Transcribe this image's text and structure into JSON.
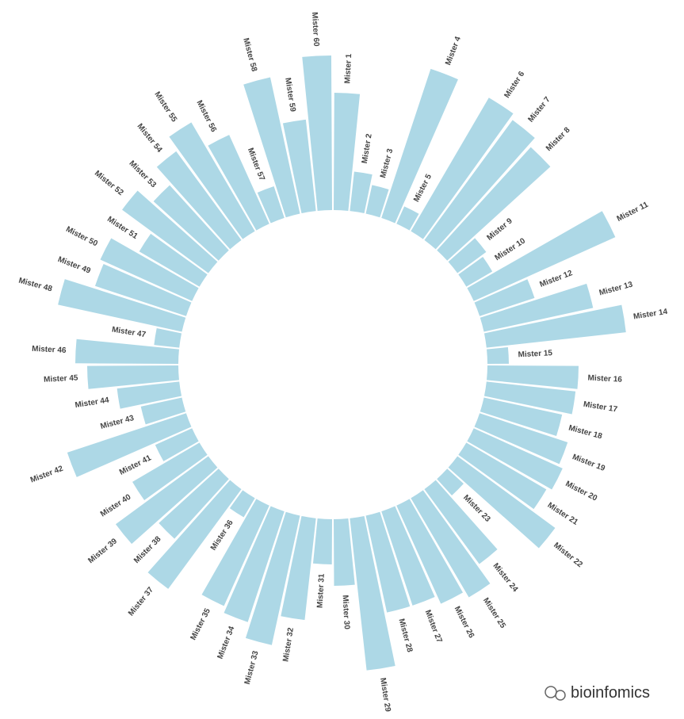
{
  "chart_data": {
    "type": "circular-bar",
    "categories": [
      "Mister 1",
      "Mister 2",
      "Mister 3",
      "Mister 4",
      "Mister 5",
      "Mister 6",
      "Mister 7",
      "Mister 8",
      "Mister 9",
      "Mister 10",
      "Mister 11",
      "Mister 12",
      "Mister 13",
      "Mister 14",
      "Mister 15",
      "Mister 16",
      "Mister 17",
      "Mister 18",
      "Mister 19",
      "Mister 20",
      "Mister 21",
      "Mister 22",
      "Mister 23",
      "Mister 24",
      "Mister 25",
      "Mister 26",
      "Mister 27",
      "Mister 28",
      "Mister 29",
      "Mister 30",
      "Mister 31",
      "Mister 32",
      "Mister 33",
      "Mister 34",
      "Mister 35",
      "Mister 36",
      "Mister 37",
      "Mister 38",
      "Mister 39",
      "Mister 40",
      "Mister 41",
      "Mister 42",
      "Mister 43",
      "Mister 44",
      "Mister 45",
      "Mister 46",
      "Mister 47",
      "Mister 48",
      "Mister 49",
      "Mister 50",
      "Mister 51",
      "Mister 52",
      "Mister 53",
      "Mister 54",
      "Mister 55",
      "Mister 56",
      "Mister 57",
      "Mister 58",
      "Mister 59",
      "Mister 60"
    ],
    "values": [
      148,
      50,
      37,
      198,
      24,
      195,
      188,
      176,
      45,
      38,
      196,
      73,
      141,
      177,
      27,
      115,
      113,
      101,
      117,
      123,
      117,
      153,
      28,
      117,
      145,
      136,
      125,
      125,
      193,
      84,
      57,
      129,
      167,
      147,
      139,
      28,
      156,
      102,
      145,
      98,
      51,
      158,
      53,
      79,
      115,
      130,
      32,
      160,
      121,
      127,
      88,
      135,
      111,
      139,
      159,
      123,
      42,
      176,
      116,
      195
    ],
    "color": "#add8e6",
    "watermark": "bioinfomics"
  }
}
